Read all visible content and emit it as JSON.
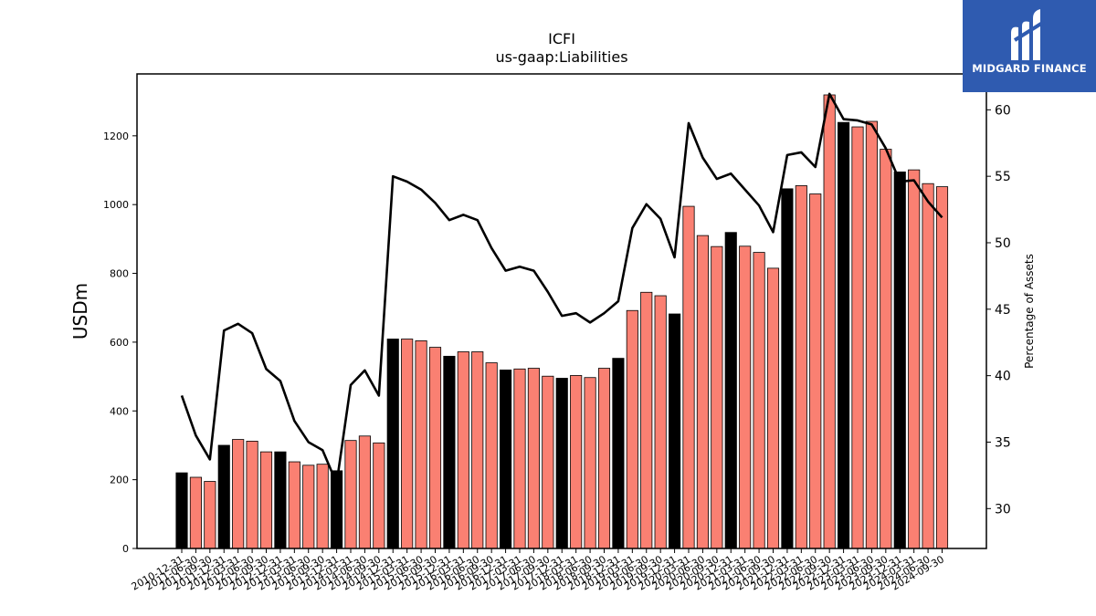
{
  "chart_data": {
    "type": "bar",
    "title": "ICFI",
    "subtitle": "us-gaap:Liabilities",
    "ylabel": "USDm",
    "y2label": "Percentage of Assets",
    "ylim": [
      0,
      1380
    ],
    "y2lim": [
      27,
      62.7
    ],
    "yticks": [
      "0",
      "200",
      "400",
      "600",
      "800",
      "1000",
      "1200"
    ],
    "y2ticks": [
      "30",
      "35",
      "40",
      "45",
      "50",
      "55",
      "60"
    ],
    "categories": [
      "2010-12-31",
      "2011-06-30",
      "2011-09-30",
      "2011-12-31",
      "2012-03-31",
      "2012-06-30",
      "2012-09-30",
      "2012-12-31",
      "2013-03-31",
      "2013-06-30",
      "2013-09-30",
      "2013-12-31",
      "2014-03-31",
      "2014-06-30",
      "2014-09-30",
      "2014-12-31",
      "2015-03-31",
      "2015-06-30",
      "2015-09-30",
      "2015-12-31",
      "2016-03-31",
      "2016-06-30",
      "2016-09-30",
      "2016-12-31",
      "2017-03-31",
      "2017-06-30",
      "2017-09-30",
      "2017-12-31",
      "2018-03-31",
      "2018-06-30",
      "2018-09-30",
      "2018-12-31",
      "2019-03-31",
      "2019-06-30",
      "2019-09-30",
      "2019-12-31",
      "2020-03-31",
      "2020-06-30",
      "2020-09-30",
      "2020-12-31",
      "2021-03-31",
      "2021-06-30",
      "2021-09-30",
      "2021-12-31",
      "2022-03-31",
      "2022-06-30",
      "2022-09-30",
      "2022-12-31",
      "2023-03-31",
      "2023-06-30",
      "2023-09-30",
      "2023-12-31",
      "2024-03-31",
      "2024-06-30",
      "2024-09-30"
    ],
    "series": [
      {
        "axis": "left",
        "type": "bar",
        "values": [
          220,
          207,
          195,
          300,
          317,
          312,
          281,
          281,
          252,
          242,
          245,
          226,
          314,
          327,
          307,
          609,
          609,
          604,
          585,
          559,
          572,
          572,
          540,
          519,
          522,
          524,
          501,
          495,
          503,
          497,
          524,
          553,
          692,
          745,
          735,
          682,
          995,
          910,
          878,
          919,
          879,
          861,
          815,
          1046,
          1055,
          1031,
          1319,
          1239,
          1226,
          1242,
          1161,
          1095,
          1101,
          1061,
          1052
        ]
      },
      {
        "axis": "right",
        "type": "line",
        "values": [
          38.5,
          35.5,
          33.7,
          43.4,
          43.9,
          43.2,
          40.5,
          39.6,
          36.6,
          35.0,
          34.4,
          31.9,
          39.3,
          40.4,
          38.5,
          55.0,
          54.6,
          54.0,
          53.0,
          51.7,
          52.1,
          51.7,
          49.6,
          47.9,
          48.2,
          47.9,
          46.3,
          44.5,
          44.7,
          44.0,
          44.7,
          45.6,
          51.1,
          52.9,
          51.8,
          48.9,
          59.0,
          56.4,
          54.8,
          55.2,
          54.0,
          52.8,
          50.8,
          56.6,
          56.8,
          55.7,
          61.2,
          59.3,
          59.2,
          58.9,
          57.1,
          54.6,
          54.7,
          53.1,
          51.9
        ]
      }
    ],
    "highlighted_categories_black": [
      "2010-12-31",
      "2011-12-31",
      "2012-12-31",
      "2013-12-31",
      "2014-12-31",
      "2015-12-31",
      "2016-12-31",
      "2017-12-31",
      "2018-12-31",
      "2019-12-31",
      "2020-12-31",
      "2021-12-31",
      "2022-12-31",
      "2023-12-31"
    ],
    "colors": {
      "bar": "#fa8072",
      "bar_highlight": "#000000",
      "line": "#000000",
      "axis": "#000000"
    },
    "grid": false
  },
  "branding": {
    "logo_text": "MIDGARD FINANCE",
    "logo_color": "#2f5bb0"
  }
}
